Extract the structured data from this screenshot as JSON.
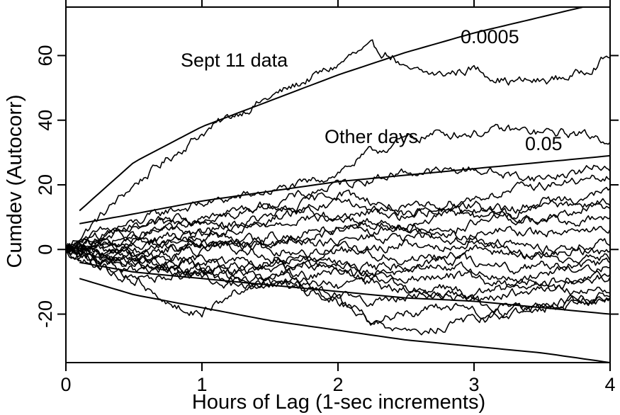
{
  "chart_data": {
    "type": "line",
    "title": "",
    "xlabel": "Hours of Lag (1-sec increments)",
    "ylabel": "Cumdev (Autocorr)",
    "xlim": [
      0,
      4
    ],
    "ylim": [
      -35,
      75
    ],
    "xticks": [
      "0",
      "1",
      "2",
      "3",
      "4"
    ],
    "yticks": [
      "-20",
      "0",
      "20",
      "40",
      "60"
    ],
    "grid": false,
    "legend": "none",
    "line_color": "#000000",
    "annotations": {
      "sept11": "Sept 11 data",
      "other_days": "Other days",
      "p_high": "0.0005",
      "p_low": "0.05"
    },
    "envelopes": [
      {
        "label": "0.0005",
        "x": [
          0.1,
          0.5,
          1.0,
          1.5,
          2.0,
          2.5,
          3.0,
          3.5,
          4.0
        ],
        "values": [
          12,
          27,
          38,
          46,
          54,
          61,
          67,
          72,
          77
        ]
      },
      {
        "label": "0.05",
        "x": [
          0.1,
          0.5,
          1.0,
          1.5,
          2.0,
          2.5,
          3.0,
          3.5,
          4.0
        ],
        "values": [
          8,
          11,
          15,
          18,
          21,
          23,
          25,
          27,
          29
        ]
      },
      {
        "label": "",
        "x": [
          0.1,
          0.5,
          1.0,
          1.5,
          2.0,
          2.5,
          3.0,
          3.5,
          4.0
        ],
        "values": [
          -4,
          -7,
          -9,
          -11,
          -13,
          -15,
          -16,
          -18,
          -20
        ]
      },
      {
        "label": "",
        "x": [
          0.1,
          0.5,
          1.0,
          1.5,
          2.0,
          2.5,
          3.0,
          3.5,
          4.0
        ],
        "values": [
          -9,
          -14,
          -18,
          -22,
          -25,
          -28,
          -30,
          -32,
          -35
        ]
      }
    ],
    "series": [
      {
        "name": "Sept 11 data",
        "x": [
          0,
          0.25,
          0.5,
          0.75,
          1.0,
          1.25,
          1.5,
          1.75,
          2.0,
          2.1,
          2.25,
          2.4,
          2.5,
          2.75,
          3.0,
          3.25,
          3.5,
          3.75,
          4.0
        ],
        "values": [
          0,
          10,
          20,
          28,
          36,
          42,
          47,
          52,
          57,
          60,
          62,
          60,
          55,
          54,
          56,
          52,
          52,
          54,
          60
        ]
      },
      {
        "name": "Other days",
        "x": [
          0,
          0.25,
          0.5,
          0.75,
          1.0,
          1.25,
          1.5,
          1.75,
          2.0,
          2.25,
          2.5,
          2.75,
          3.0,
          3.25,
          3.5,
          3.75,
          4.0
        ],
        "values": [
          0,
          5,
          8,
          12,
          14,
          16,
          18,
          20,
          24,
          30,
          34,
          36,
          36,
          37,
          36,
          36,
          34
        ]
      },
      {
        "name": "",
        "x": [
          0,
          0.25,
          0.5,
          0.75,
          1.0,
          1.25,
          1.5,
          1.75,
          2.0,
          2.25,
          2.5,
          2.75,
          3.0,
          3.25,
          3.5,
          3.75,
          4.0
        ],
        "values": [
          0,
          3,
          6,
          8,
          10,
          12,
          14,
          17,
          20,
          22,
          24,
          24,
          25,
          23,
          22,
          24,
          26
        ]
      },
      {
        "name": "",
        "x": [
          0,
          0.25,
          0.5,
          0.75,
          1.0,
          1.25,
          1.5,
          1.75,
          2.0,
          2.25,
          2.5,
          2.75,
          3.0,
          3.25,
          3.5,
          3.75,
          4.0
        ],
        "values": [
          0,
          2,
          4,
          6,
          5,
          8,
          10,
          14,
          18,
          15,
          12,
          14,
          16,
          18,
          20,
          21,
          22
        ]
      },
      {
        "name": "",
        "x": [
          0,
          0.25,
          0.5,
          0.75,
          1.0,
          1.25,
          1.5,
          1.75,
          2.0,
          2.25,
          2.5,
          2.75,
          3.0,
          3.25,
          3.5,
          3.75,
          4.0
        ],
        "values": [
          0,
          -2,
          1,
          4,
          3,
          6,
          8,
          10,
          9,
          12,
          10,
          13,
          14,
          12,
          15,
          16,
          18
        ]
      },
      {
        "name": "",
        "x": [
          0,
          0.25,
          0.5,
          0.75,
          1.0,
          1.25,
          1.5,
          1.75,
          2.0,
          2.25,
          2.5,
          2.75,
          3.0,
          3.25,
          3.5,
          3.75,
          4.0
        ],
        "values": [
          0,
          2,
          -1,
          2,
          5,
          4,
          2,
          5,
          7,
          9,
          8,
          10,
          12,
          10,
          9,
          12,
          14
        ]
      },
      {
        "name": "",
        "x": [
          0,
          0.25,
          0.5,
          0.75,
          1.0,
          1.25,
          1.5,
          1.75,
          2.0,
          2.25,
          2.5,
          2.75,
          3.0,
          3.25,
          3.5,
          3.75,
          4.0
        ],
        "values": [
          0,
          1,
          3,
          1,
          -1,
          2,
          4,
          3,
          6,
          5,
          7,
          6,
          8,
          10,
          9,
          8,
          10
        ]
      },
      {
        "name": "",
        "x": [
          0,
          0.25,
          0.5,
          0.75,
          1.0,
          1.25,
          1.5,
          1.75,
          2.0,
          2.25,
          2.5,
          2.75,
          3.0,
          3.25,
          3.5,
          3.75,
          4.0
        ],
        "values": [
          0,
          -1,
          2,
          3,
          2,
          0,
          1,
          3,
          2,
          4,
          3,
          5,
          4,
          6,
          5,
          7,
          6
        ]
      },
      {
        "name": "",
        "x": [
          0,
          0.25,
          0.5,
          0.75,
          1.0,
          1.25,
          1.5,
          1.75,
          2.0,
          2.25,
          2.5,
          2.75,
          3.0,
          3.25,
          3.5,
          3.75,
          4.0
        ],
        "values": [
          0,
          2,
          0,
          -2,
          1,
          3,
          0,
          -1,
          1,
          0,
          2,
          1,
          3,
          2,
          0,
          1,
          2
        ]
      },
      {
        "name": "",
        "x": [
          0,
          0.25,
          0.5,
          0.75,
          1.0,
          1.25,
          1.5,
          1.75,
          2.0,
          2.25,
          2.5,
          2.75,
          3.0,
          3.25,
          3.5,
          3.75,
          4.0
        ],
        "values": [
          0,
          -2,
          -3,
          0,
          2,
          1,
          -2,
          -3,
          0,
          -1,
          -3,
          -2,
          0,
          -1,
          -2,
          0,
          -1
        ]
      },
      {
        "name": "",
        "x": [
          0,
          0.25,
          0.5,
          0.75,
          1.0,
          1.25,
          1.5,
          1.75,
          2.0,
          2.25,
          2.5,
          2.75,
          3.0,
          3.25,
          3.5,
          3.75,
          4.0
        ],
        "values": [
          0,
          1,
          -2,
          -4,
          -3,
          -5,
          -4,
          -2,
          -4,
          -6,
          -5,
          -3,
          -4,
          -6,
          -5,
          -4,
          -3
        ]
      },
      {
        "name": "",
        "x": [
          0,
          0.25,
          0.5,
          0.75,
          1.0,
          1.25,
          1.5,
          1.75,
          2.0,
          2.25,
          2.5,
          2.75,
          3.0,
          3.25,
          3.5,
          3.75,
          4.0
        ],
        "values": [
          0,
          -3,
          -4,
          -2,
          -5,
          -7,
          -6,
          -4,
          -6,
          -8,
          -7,
          -5,
          -7,
          -9,
          -8,
          -6,
          -5
        ]
      },
      {
        "name": "",
        "x": [
          0,
          0.25,
          0.5,
          0.75,
          1.0,
          1.25,
          1.5,
          1.75,
          2.0,
          2.25,
          2.5,
          2.75,
          3.0,
          3.25,
          3.5,
          3.75,
          4.0
        ],
        "values": [
          0,
          -1,
          -5,
          -6,
          -4,
          -3,
          -6,
          -8,
          -7,
          -9,
          -10,
          -8,
          -9,
          -11,
          -10,
          -9,
          -8
        ]
      },
      {
        "name": "",
        "x": [
          0,
          0.25,
          0.5,
          0.75,
          1.0,
          1.25,
          1.5,
          1.75,
          2.0,
          2.25,
          2.5,
          2.75,
          3.0,
          3.25,
          3.5,
          3.75,
          4.0
        ],
        "values": [
          0,
          -4,
          -6,
          -8,
          -7,
          -9,
          -11,
          -10,
          -12,
          -11,
          -13,
          -12,
          -14,
          -12,
          -11,
          -13,
          -12
        ]
      },
      {
        "name": "",
        "x": [
          0,
          0.25,
          0.5,
          0.75,
          1.0,
          1.25,
          1.5,
          1.75,
          2.0,
          2.25,
          2.5,
          2.75,
          3.0,
          3.25,
          3.5,
          3.75,
          4.0
        ],
        "values": [
          0,
          -2,
          -4,
          -6,
          -9,
          -11,
          -10,
          -12,
          -14,
          -16,
          -15,
          -14,
          -16,
          -18,
          -17,
          -16,
          -15
        ]
      },
      {
        "name": "",
        "x": [
          0,
          0.2,
          0.4,
          0.6,
          0.8,
          1.0,
          1.2,
          1.4,
          1.6,
          1.8,
          2.0,
          2.25,
          2.5,
          2.75,
          3.0,
          3.25,
          3.5,
          3.75,
          4.0
        ],
        "values": [
          0,
          -4,
          -8,
          -12,
          -18,
          -20,
          -14,
          -10,
          -8,
          -12,
          -16,
          -22,
          -20,
          -18,
          -19,
          -20,
          -18,
          -17,
          -16
        ]
      },
      {
        "name": "",
        "x": [
          0,
          0.25,
          0.5,
          0.75,
          1.0,
          1.25,
          1.5,
          1.75,
          2.0,
          2.25,
          2.5,
          2.75,
          3.0,
          3.25,
          3.5,
          3.75,
          4.0
        ],
        "values": [
          0,
          -5,
          -9,
          -8,
          -6,
          -8,
          -10,
          -12,
          -16,
          -22,
          -26,
          -24,
          -22,
          -20,
          -18,
          -16,
          -14
        ]
      },
      {
        "name": "",
        "x": [
          0,
          0.25,
          0.5,
          0.75,
          1.0,
          1.25,
          1.5,
          1.75,
          2.0,
          2.25,
          2.5,
          2.75,
          3.0,
          3.25,
          3.5,
          3.75,
          4.0
        ],
        "values": [
          0,
          -3,
          -2,
          -5,
          -8,
          -10,
          -8,
          -6,
          -4,
          -8,
          -12,
          -14,
          -16,
          -14,
          -12,
          -10,
          -8
        ]
      },
      {
        "name": "",
        "x": [
          0,
          0.25,
          0.5,
          0.75,
          1.0,
          1.25,
          1.5,
          1.75,
          2.0,
          2.25,
          2.5,
          2.75,
          3.0,
          3.25,
          3.5,
          3.75,
          4.0
        ],
        "values": [
          0,
          3,
          5,
          7,
          9,
          11,
          13,
          12,
          14,
          13,
          11,
          12,
          10,
          11,
          13,
          14,
          15
        ]
      },
      {
        "name": "",
        "x": [
          0,
          0.25,
          0.5,
          0.75,
          1.0,
          1.25,
          1.5,
          1.75,
          2.0,
          2.25,
          2.5,
          2.75,
          3.0,
          3.25,
          3.5,
          3.75,
          4.0
        ],
        "values": [
          0,
          4,
          7,
          10,
          8,
          6,
          9,
          12,
          10,
          8,
          6,
          4,
          2,
          0,
          -2,
          -4,
          -5
        ]
      }
    ]
  }
}
